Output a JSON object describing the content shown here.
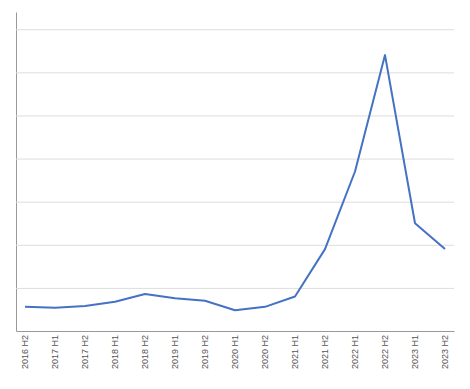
{
  "chart_data": {
    "type": "line",
    "categories": [
      "2016 H2",
      "2017 H1",
      "2017 H2",
      "2018 H1",
      "2018 H2",
      "2019 H1",
      "2019 H2",
      "2020 H1",
      "2020 H2",
      "2021 H1",
      "2021 H2",
      "2022 H1",
      "2022 H2",
      "2023 H1",
      "2023 H2"
    ],
    "values": [
      28,
      27,
      29,
      34,
      43,
      38,
      35,
      24,
      28,
      40,
      95,
      185,
      320,
      125,
      95
    ],
    "color": "#4472c4",
    "ylim": [
      0,
      370
    ],
    "yticks": [
      0,
      50,
      100,
      150,
      200,
      250,
      300,
      350
    ],
    "grid": true,
    "tick_labels": "x"
  }
}
